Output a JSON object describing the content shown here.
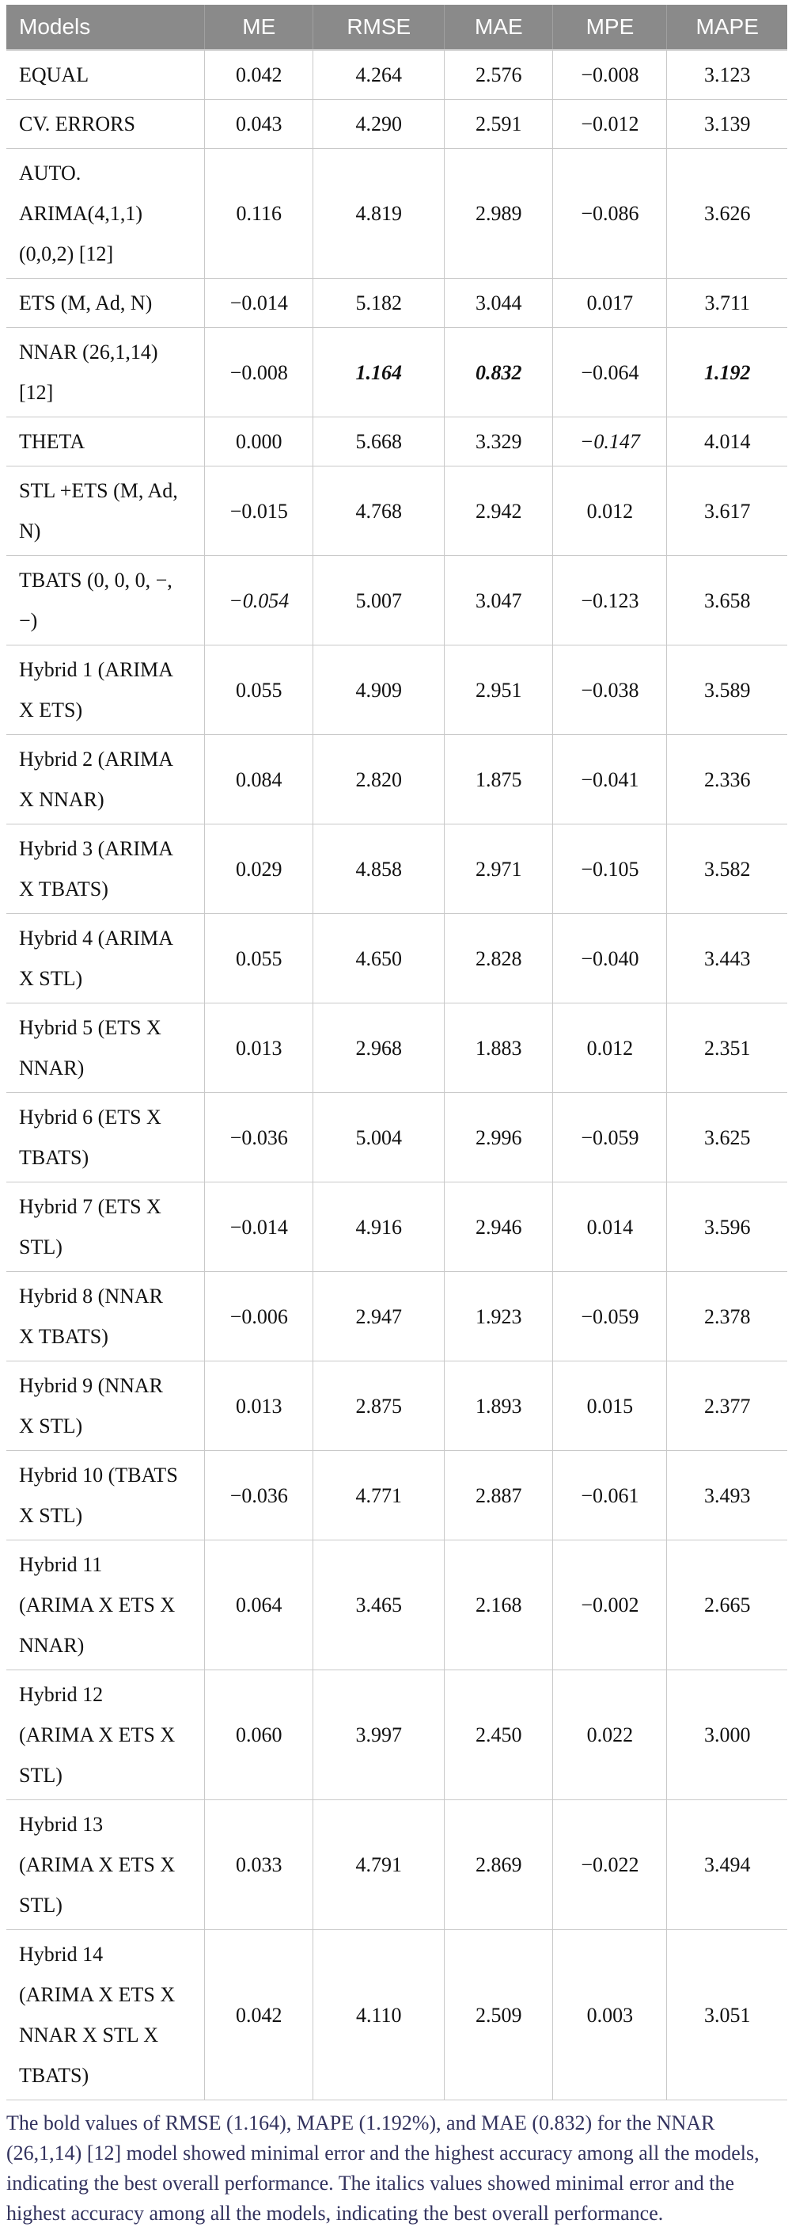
{
  "table": {
    "columns": [
      "Models",
      "ME",
      "RMSE",
      "MAE",
      "MPE",
      "MAPE"
    ],
    "rows": [
      {
        "model": "EQUAL",
        "values": [
          "0.042",
          "4.264",
          "2.576",
          "−0.008",
          "3.123"
        ],
        "styles": [
          "",
          "",
          "",
          "",
          ""
        ]
      },
      {
        "model": "CV. ERRORS",
        "values": [
          "0.043",
          "4.290",
          "2.591",
          "−0.012",
          "3.139"
        ],
        "styles": [
          "",
          "",
          "",
          "",
          ""
        ]
      },
      {
        "model": "AUTO.\nARIMA(4,1,1)\n(0,0,2) [12]",
        "values": [
          "0.116",
          "4.819",
          "2.989",
          "−0.086",
          "3.626"
        ],
        "styles": [
          "",
          "",
          "",
          "",
          ""
        ]
      },
      {
        "model": "ETS (M, Ad, N)",
        "values": [
          "−0.014",
          "5.182",
          "3.044",
          "0.017",
          "3.711"
        ],
        "styles": [
          "",
          "",
          "",
          "",
          ""
        ]
      },
      {
        "model": "NNAR (26,1,14)\n[12]",
        "values": [
          "−0.008",
          "1.164",
          "0.832",
          "−0.064",
          "1.192"
        ],
        "styles": [
          "",
          "bi",
          "bi",
          "",
          "bi"
        ]
      },
      {
        "model": "THETA",
        "values": [
          "0.000",
          "5.668",
          "3.329",
          "−0.147",
          "4.014"
        ],
        "styles": [
          "",
          "",
          "",
          "i",
          ""
        ]
      },
      {
        "model": "STL +ETS (M, Ad,\nN)",
        "values": [
          "−0.015",
          "4.768",
          "2.942",
          "0.012",
          "3.617"
        ],
        "styles": [
          "",
          "",
          "",
          "",
          ""
        ]
      },
      {
        "model": "TBATS (0, 0, 0, −,\n−)",
        "values": [
          "−0.054",
          "5.007",
          "3.047",
          "−0.123",
          "3.658"
        ],
        "styles": [
          "i",
          "",
          "",
          "",
          ""
        ]
      },
      {
        "model": "Hybrid 1 (ARIMA\nX ETS)",
        "values": [
          "0.055",
          "4.909",
          "2.951",
          "−0.038",
          "3.589"
        ],
        "styles": [
          "",
          "",
          "",
          "",
          ""
        ]
      },
      {
        "model": "Hybrid 2 (ARIMA\nX NNAR)",
        "values": [
          "0.084",
          "2.820",
          "1.875",
          "−0.041",
          "2.336"
        ],
        "styles": [
          "",
          "",
          "",
          "",
          ""
        ]
      },
      {
        "model": "Hybrid 3 (ARIMA\nX TBATS)",
        "values": [
          "0.029",
          "4.858",
          "2.971",
          "−0.105",
          "3.582"
        ],
        "styles": [
          "",
          "",
          "",
          "",
          ""
        ]
      },
      {
        "model": "Hybrid 4 (ARIMA\nX STL)",
        "values": [
          "0.055",
          "4.650",
          "2.828",
          "−0.040",
          "3.443"
        ],
        "styles": [
          "",
          "",
          "",
          "",
          ""
        ]
      },
      {
        "model": "Hybrid 5 (ETS X\nNNAR)",
        "values": [
          "0.013",
          "2.968",
          "1.883",
          "0.012",
          "2.351"
        ],
        "styles": [
          "",
          "",
          "",
          "",
          ""
        ]
      },
      {
        "model": "Hybrid 6 (ETS X\nTBATS)",
        "values": [
          "−0.036",
          "5.004",
          "2.996",
          "−0.059",
          "3.625"
        ],
        "styles": [
          "",
          "",
          "",
          "",
          ""
        ]
      },
      {
        "model": "Hybrid 7 (ETS X\nSTL)",
        "values": [
          "−0.014",
          "4.916",
          "2.946",
          "0.014",
          "3.596"
        ],
        "styles": [
          "",
          "",
          "",
          "",
          ""
        ]
      },
      {
        "model": "Hybrid 8 (NNAR\nX TBATS)",
        "values": [
          "−0.006",
          "2.947",
          "1.923",
          "−0.059",
          "2.378"
        ],
        "styles": [
          "",
          "",
          "",
          "",
          ""
        ]
      },
      {
        "model": "Hybrid 9 (NNAR\nX STL)",
        "values": [
          "0.013",
          "2.875",
          "1.893",
          "0.015",
          "2.377"
        ],
        "styles": [
          "",
          "",
          "",
          "",
          ""
        ]
      },
      {
        "model": "Hybrid 10 (TBATS\nX STL)",
        "values": [
          "−0.036",
          "4.771",
          "2.887",
          "−0.061",
          "3.493"
        ],
        "styles": [
          "",
          "",
          "",
          "",
          ""
        ]
      },
      {
        "model": "Hybrid 11\n(ARIMA X ETS X\nNNAR)",
        "values": [
          "0.064",
          "3.465",
          "2.168",
          "−0.002",
          "2.665"
        ],
        "styles": [
          "",
          "",
          "",
          "",
          ""
        ]
      },
      {
        "model": "Hybrid 12\n(ARIMA X ETS X\nSTL)",
        "values": [
          "0.060",
          "3.997",
          "2.450",
          "0.022",
          "3.000"
        ],
        "styles": [
          "",
          "",
          "",
          "",
          ""
        ]
      },
      {
        "model": "Hybrid 13\n(ARIMA X ETS X\nSTL)",
        "values": [
          "0.033",
          "4.791",
          "2.869",
          "−0.022",
          "3.494"
        ],
        "styles": [
          "",
          "",
          "",
          "",
          ""
        ]
      },
      {
        "model": "Hybrid 14\n(ARIMA X ETS X\nNNAR X STL X\nTBATS)",
        "values": [
          "0.042",
          "4.110",
          "2.509",
          "0.003",
          "3.051"
        ],
        "styles": [
          "",
          "",
          "",
          "",
          ""
        ]
      }
    ]
  },
  "footnote": "The bold values of RMSE (1.164), MAPE (1.192%), and MAE (0.832) for the NNAR (26,1,14) [12] model showed minimal error and the highest accuracy among all the models, indicating the best overall performance. The italics values showed minimal error and the highest accuracy among all the models, indicating the best overall performance.",
  "colors": {
    "header_bg": "#8a8a8a",
    "header_text": "#ffffff",
    "grid_line": "#c9c9c9",
    "footnote_text": "#32325e"
  }
}
